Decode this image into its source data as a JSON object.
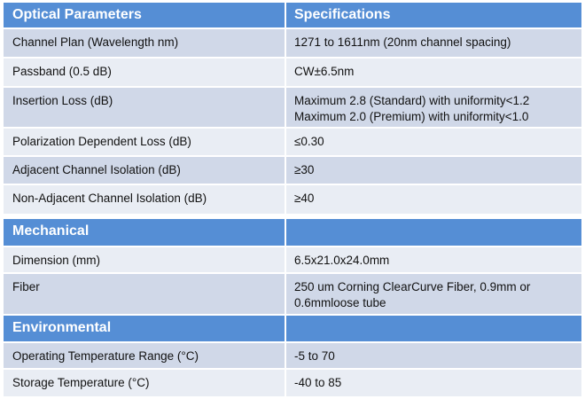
{
  "sections": [
    {
      "title": "Optical  Parameters",
      "title_right": "Specifications",
      "rows": [
        {
          "param": "Channel Plan (Wavelength nm)",
          "spec": [
            "1271 to 1611nm (20nm channel spacing)"
          ]
        },
        {
          "param": "Passband (0.5 dB)",
          "spec": [
            "CW±6.5nm"
          ]
        },
        {
          "param": "Insertion Loss (dB)",
          "spec": [
            "Maximum 2.8  (Standard) with uniformity<1.2",
            "Maximum 2.0  (Premium) with uniformity<1.0"
          ]
        },
        {
          "param": "Polarization Dependent Loss (dB)",
          "spec": [
            "≤0.30"
          ]
        },
        {
          "param": "Adjacent Channel Isolation (dB)",
          "spec": [
            "≥30"
          ]
        },
        {
          "param": "Non-Adjacent Channel Isolation (dB)",
          "spec": [
            "≥40"
          ]
        }
      ]
    },
    {
      "title": "Mechanical",
      "title_right": "",
      "rows": [
        {
          "param": "Dimension (mm)",
          "spec": [
            "6.5x21.0x24.0mm"
          ]
        },
        {
          "param": "Fiber",
          "spec": [
            "250 um Corning ClearCurve  Fiber,  0.9mm or",
            "0.6mmloose tube"
          ]
        }
      ]
    },
    {
      "title": "Environmental",
      "title_right": "",
      "rows": [
        {
          "param": "Operating Temperature Range (°C)",
          "spec": [
            "-5 to 70"
          ]
        },
        {
          "param": "Storage Temperature (°C)",
          "spec": [
            "-40 to 85"
          ]
        }
      ]
    }
  ],
  "colors": {
    "header": "#558ED5",
    "row_dark": "#D0D8E8",
    "row_light": "#E9EDF4"
  }
}
